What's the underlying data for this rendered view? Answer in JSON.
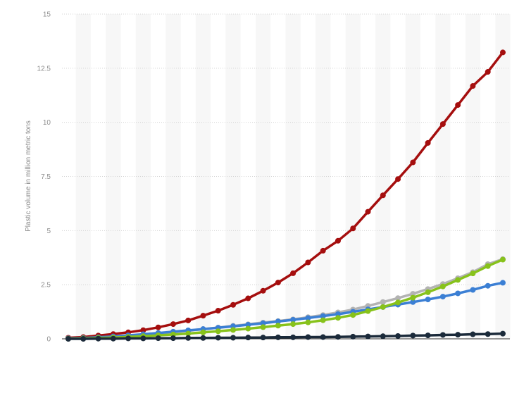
{
  "chart_data": {
    "type": "line",
    "title": "",
    "xlabel": "",
    "ylabel": "Plastic volume in million metric tons",
    "ylim": [
      0,
      15
    ],
    "yticks": [
      0,
      2.5,
      5,
      7.5,
      10,
      12.5,
      15
    ],
    "ytick_labels": [
      "0",
      "2.5",
      "5",
      "7.5",
      "10",
      "12.5",
      "15"
    ],
    "grid": true,
    "legend": "none",
    "x_points": 30,
    "series": [
      {
        "color": "#a50e0e",
        "values": [
          0.05,
          0.08,
          0.15,
          0.22,
          0.3,
          0.4,
          0.53,
          0.68,
          0.85,
          1.07,
          1.3,
          1.57,
          1.87,
          2.22,
          2.6,
          3.03,
          3.53,
          4.07,
          4.53,
          5.1,
          5.87,
          6.63,
          7.38,
          8.15,
          9.05,
          9.92,
          10.8,
          11.68,
          12.33,
          13.23
        ]
      },
      {
        "color": "#b3b3b3",
        "values": [
          0.02,
          0.03,
          0.05,
          0.08,
          0.12,
          0.17,
          0.23,
          0.3,
          0.37,
          0.45,
          0.52,
          0.6,
          0.67,
          0.75,
          0.82,
          0.9,
          1.0,
          1.1,
          1.22,
          1.35,
          1.52,
          1.7,
          1.88,
          2.08,
          2.3,
          2.53,
          2.8,
          3.08,
          3.45,
          3.68
        ]
      },
      {
        "color": "#3b7fd4",
        "values": [
          0.02,
          0.04,
          0.07,
          0.11,
          0.16,
          0.21,
          0.27,
          0.33,
          0.39,
          0.45,
          0.51,
          0.58,
          0.65,
          0.72,
          0.8,
          0.88,
          0.96,
          1.05,
          1.14,
          1.25,
          1.36,
          1.47,
          1.58,
          1.7,
          1.82,
          1.95,
          2.1,
          2.26,
          2.45,
          2.59
        ]
      },
      {
        "color": "#87c21b",
        "values": [
          0.01,
          0.02,
          0.04,
          0.06,
          0.09,
          0.12,
          0.16,
          0.2,
          0.24,
          0.3,
          0.35,
          0.41,
          0.47,
          0.54,
          0.61,
          0.68,
          0.76,
          0.86,
          0.97,
          1.1,
          1.28,
          1.47,
          1.68,
          1.9,
          2.15,
          2.42,
          2.72,
          3.02,
          3.36,
          3.66
        ]
      },
      {
        "color": "#1b2a3a",
        "values": [
          0.0,
          0.0,
          0.01,
          0.01,
          0.02,
          0.02,
          0.03,
          0.03,
          0.04,
          0.04,
          0.05,
          0.05,
          0.06,
          0.06,
          0.07,
          0.07,
          0.08,
          0.08,
          0.09,
          0.1,
          0.11,
          0.12,
          0.13,
          0.15,
          0.16,
          0.18,
          0.19,
          0.21,
          0.22,
          0.24
        ]
      }
    ]
  }
}
